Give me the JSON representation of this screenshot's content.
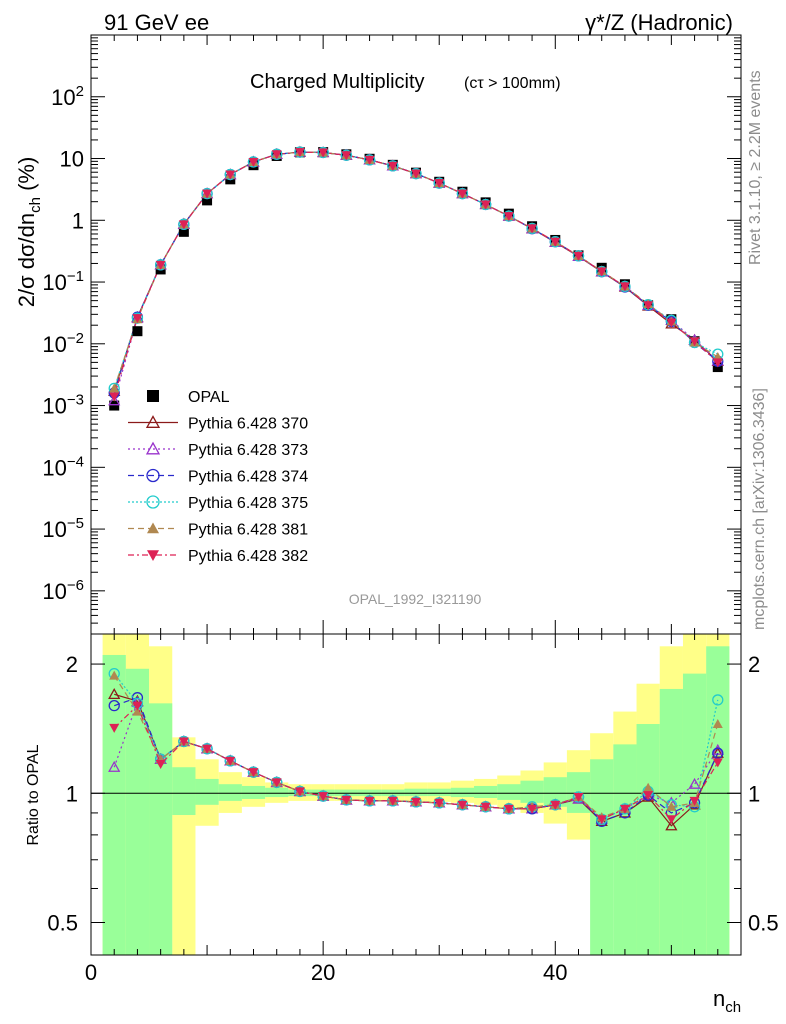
{
  "header": {
    "left": "91 GeV ee",
    "right": "γ*/Z (Hadronic)",
    "side_top": "Rivet 3.1.10, ≥ 2.2M events",
    "side_bottom": "mcplots.cern.ch [arXiv:1306.3436]"
  },
  "chart_data": [
    {
      "type": "scatter",
      "title": "Charged Multiplicity",
      "title_suffix": "(cτ > 100mm)",
      "watermark": "OPAL_1992_I321190",
      "ylabel": "2/σ dσ/dn_ch (%)",
      "yscale": "log",
      "ylim": [
        2e-07,
        1000
      ],
      "xlim": [
        0,
        56
      ],
      "yticklabels": [
        {
          "value": 100,
          "base": "10",
          "exp": "2"
        },
        {
          "value": 10,
          "base": "10",
          "exp": ""
        },
        {
          "value": 1,
          "base": "1",
          "exp": ""
        },
        {
          "value": 0.1,
          "base": "10",
          "exp": "−1"
        },
        {
          "value": 0.01,
          "base": "10",
          "exp": "−2"
        },
        {
          "value": 0.001,
          "base": "10",
          "exp": "−3"
        },
        {
          "value": 0.0001,
          "base": "10",
          "exp": "−4"
        },
        {
          "value": 1e-05,
          "base": "10",
          "exp": "−5"
        },
        {
          "value": 1e-06,
          "base": "10",
          "exp": "−6"
        }
      ],
      "x": [
        2,
        4,
        6,
        8,
        10,
        12,
        14,
        16,
        18,
        20,
        22,
        24,
        26,
        28,
        30,
        32,
        34,
        36,
        38,
        40,
        42,
        44,
        46,
        48,
        50,
        52,
        54
      ],
      "series": [
        {
          "name": "OPAL",
          "color": "#000000",
          "marker": "square",
          "values": [
            0.001,
            0.016,
            0.16,
            0.65,
            2.1,
            4.6,
            7.8,
            11.0,
            12.6,
            12.7,
            11.7,
            9.9,
            7.9,
            5.9,
            4.2,
            2.9,
            1.95,
            1.28,
            0.8,
            0.48,
            0.27,
            0.17,
            0.092,
            0.042,
            0.025,
            0.011,
            0.0042
          ]
        },
        {
          "name": "Pythia 6.428 370",
          "color": "#8b1a1a",
          "marker": "triangle-open",
          "values": [
            0.0017,
            0.027,
            0.19,
            0.87,
            2.7,
            5.5,
            8.8,
            11.7,
            12.7,
            12.5,
            11.3,
            9.5,
            7.6,
            5.7,
            4.0,
            2.7,
            1.8,
            1.17,
            0.73,
            0.44,
            0.26,
            0.146,
            0.083,
            0.041,
            0.021,
            0.0115,
            0.0052
          ]
        },
        {
          "name": "Pythia 6.428 373",
          "color": "#9933cc",
          "marker": "triangle-open",
          "values": [
            0.0012,
            0.026,
            0.19,
            0.86,
            2.7,
            5.5,
            8.8,
            11.7,
            12.7,
            12.5,
            11.3,
            9.5,
            7.6,
            5.7,
            4.0,
            2.7,
            1.8,
            1.17,
            0.73,
            0.44,
            0.26,
            0.147,
            0.085,
            0.042,
            0.024,
            0.0115,
            0.0053
          ]
        },
        {
          "name": "Pythia 6.428 374",
          "color": "#2a2acc",
          "marker": "circle-open",
          "values": [
            0.0016,
            0.027,
            0.19,
            0.86,
            2.7,
            5.5,
            8.8,
            11.7,
            12.7,
            12.5,
            11.3,
            9.5,
            7.6,
            5.7,
            4.0,
            2.7,
            1.8,
            1.17,
            0.73,
            0.45,
            0.265,
            0.147,
            0.083,
            0.042,
            0.023,
            0.0105,
            0.0052
          ]
        },
        {
          "name": "Pythia 6.428 375",
          "color": "#22cccc",
          "marker": "circle-open",
          "values": [
            0.0019,
            0.026,
            0.19,
            0.86,
            2.7,
            5.5,
            8.8,
            11.7,
            12.7,
            12.5,
            11.3,
            9.5,
            7.6,
            5.7,
            4.0,
            2.7,
            1.8,
            1.17,
            0.74,
            0.45,
            0.265,
            0.148,
            0.085,
            0.043,
            0.024,
            0.0105,
            0.0068
          ]
        },
        {
          "name": "Pythia 6.428 381",
          "color": "#b08850",
          "marker": "triangle",
          "values": [
            0.0019,
            0.025,
            0.19,
            0.86,
            2.7,
            5.5,
            8.8,
            11.7,
            12.7,
            12.5,
            11.3,
            9.5,
            7.6,
            5.7,
            4.0,
            2.7,
            1.8,
            1.17,
            0.74,
            0.45,
            0.265,
            0.15,
            0.085,
            0.044,
            0.023,
            0.0105,
            0.0061
          ]
        },
        {
          "name": "Pythia 6.428 382",
          "color": "#dd2255",
          "marker": "triangle-down",
          "values": [
            0.0014,
            0.026,
            0.19,
            0.86,
            2.7,
            5.5,
            8.8,
            11.7,
            12.7,
            12.5,
            11.3,
            9.5,
            7.6,
            5.7,
            4.0,
            2.7,
            1.8,
            1.17,
            0.74,
            0.45,
            0.265,
            0.148,
            0.085,
            0.042,
            0.022,
            0.011,
            0.005
          ]
        }
      ]
    },
    {
      "type": "line",
      "ylabel": "Ratio to OPAL",
      "xlabel_base": "n",
      "xlabel_sub": "ch",
      "yscale": "log",
      "ylim": [
        0.42,
        2.35
      ],
      "xlim": [
        0,
        56
      ],
      "yticks": [
        0.5,
        1,
        2
      ],
      "yticklabels": [
        "0.5",
        "1",
        "2"
      ],
      "xticks": [
        0,
        20,
        40
      ],
      "xticklabels": [
        "0",
        "20",
        "40"
      ],
      "reference": 1,
      "band_edges": [
        1,
        3,
        5,
        7,
        9,
        11,
        13,
        15,
        17,
        19,
        21,
        23,
        25,
        27,
        29,
        31,
        33,
        35,
        37,
        39,
        41,
        43,
        45,
        47,
        49,
        51,
        53,
        55
      ],
      "band_inner": [
        [
          0.42,
          2.1
        ],
        [
          0.42,
          1.95
        ],
        [
          0.42,
          1.62
        ],
        [
          0.89,
          1.15
        ],
        [
          0.94,
          1.08
        ],
        [
          0.96,
          1.05
        ],
        [
          0.97,
          1.04
        ],
        [
          0.98,
          1.03
        ],
        [
          0.985,
          1.02
        ],
        [
          0.985,
          1.02
        ],
        [
          0.985,
          1.02
        ],
        [
          0.985,
          1.02
        ],
        [
          0.985,
          1.02
        ],
        [
          0.985,
          1.025
        ],
        [
          0.985,
          1.025
        ],
        [
          0.98,
          1.03
        ],
        [
          0.975,
          1.04
        ],
        [
          0.965,
          1.05
        ],
        [
          0.95,
          1.07
        ],
        [
          0.93,
          1.09
        ],
        [
          0.9,
          1.12
        ],
        [
          0.42,
          1.2
        ],
        [
          0.42,
          1.3
        ],
        [
          0.42,
          1.45
        ],
        [
          0.42,
          1.75
        ],
        [
          0.42,
          1.9
        ],
        [
          0.42,
          2.2
        ]
      ],
      "band_outer": [
        [
          0.42,
          2.35
        ],
        [
          0.42,
          2.35
        ],
        [
          0.42,
          2.2
        ],
        [
          0.42,
          1.35
        ],
        [
          0.84,
          1.2
        ],
        [
          0.9,
          1.12
        ],
        [
          0.93,
          1.09
        ],
        [
          0.95,
          1.06
        ],
        [
          0.96,
          1.05
        ],
        [
          0.96,
          1.05
        ],
        [
          0.96,
          1.05
        ],
        [
          0.96,
          1.05
        ],
        [
          0.96,
          1.05
        ],
        [
          0.955,
          1.06
        ],
        [
          0.955,
          1.06
        ],
        [
          0.95,
          1.07
        ],
        [
          0.94,
          1.08
        ],
        [
          0.92,
          1.1
        ],
        [
          0.9,
          1.13
        ],
        [
          0.85,
          1.18
        ],
        [
          0.78,
          1.26
        ],
        [
          0.7,
          1.38
        ],
        [
          0.42,
          1.55
        ],
        [
          0.42,
          1.8
        ],
        [
          0.42,
          2.2
        ],
        [
          0.42,
          2.35
        ],
        [
          0.42,
          2.35
        ]
      ],
      "x": [
        2,
        4,
        6,
        8,
        10,
        12,
        14,
        16,
        18,
        20,
        22,
        24,
        26,
        28,
        30,
        32,
        34,
        36,
        38,
        40,
        42,
        44,
        46,
        48,
        50,
        52,
        54
      ],
      "series": [
        {
          "name": "Pythia 6.428 370",
          "values": [
            1.7,
            1.64,
            1.2,
            1.32,
            1.27,
            1.19,
            1.12,
            1.06,
            1.01,
            0.985,
            0.965,
            0.96,
            0.96,
            0.955,
            0.95,
            0.94,
            0.93,
            0.92,
            0.92,
            0.94,
            0.97,
            0.86,
            0.9,
            0.98,
            0.84,
            0.94,
            1.24
          ]
        },
        {
          "name": "Pythia 6.428 373",
          "values": [
            1.15,
            1.63,
            1.2,
            1.32,
            1.27,
            1.19,
            1.12,
            1.06,
            1.01,
            0.985,
            0.965,
            0.96,
            0.96,
            0.955,
            0.95,
            0.94,
            0.93,
            0.92,
            0.92,
            0.94,
            0.97,
            0.87,
            0.92,
            0.99,
            0.95,
            1.05,
            1.26
          ]
        },
        {
          "name": "Pythia 6.428 374",
          "values": [
            1.6,
            1.67,
            1.2,
            1.32,
            1.27,
            1.19,
            1.12,
            1.06,
            1.01,
            0.985,
            0.965,
            0.96,
            0.96,
            0.955,
            0.95,
            0.94,
            0.93,
            0.92,
            0.92,
            0.94,
            0.98,
            0.86,
            0.9,
            0.99,
            0.9,
            0.95,
            1.24
          ]
        },
        {
          "name": "Pythia 6.428 375",
          "values": [
            1.9,
            1.62,
            1.2,
            1.32,
            1.27,
            1.19,
            1.12,
            1.06,
            1.01,
            0.985,
            0.965,
            0.96,
            0.96,
            0.955,
            0.95,
            0.94,
            0.93,
            0.92,
            0.93,
            0.94,
            0.98,
            0.87,
            0.92,
            1.01,
            0.94,
            0.93,
            1.65
          ]
        },
        {
          "name": "Pythia 6.428 381",
          "values": [
            1.88,
            1.55,
            1.2,
            1.32,
            1.27,
            1.19,
            1.12,
            1.06,
            1.01,
            0.985,
            0.965,
            0.96,
            0.96,
            0.955,
            0.95,
            0.94,
            0.93,
            0.92,
            0.93,
            0.94,
            0.98,
            0.88,
            0.92,
            1.03,
            0.93,
            0.95,
            1.45
          ]
        },
        {
          "name": "Pythia 6.428 382",
          "values": [
            1.42,
            1.6,
            1.17,
            1.32,
            1.27,
            1.19,
            1.12,
            1.06,
            1.01,
            0.985,
            0.965,
            0.96,
            0.96,
            0.955,
            0.95,
            0.94,
            0.93,
            0.92,
            0.92,
            0.94,
            0.98,
            0.87,
            0.92,
            0.99,
            0.87,
            0.96,
            1.18
          ]
        }
      ]
    }
  ]
}
